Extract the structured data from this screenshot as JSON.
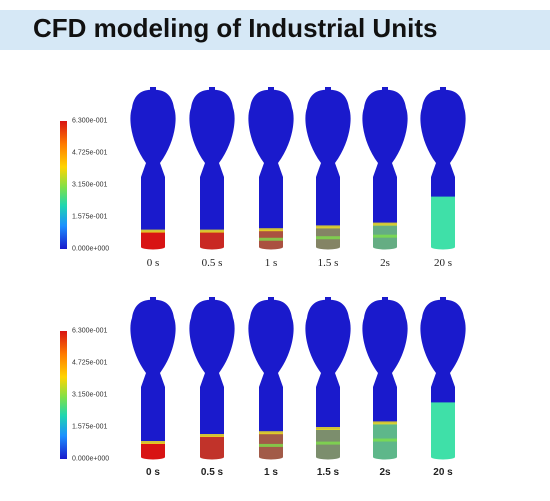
{
  "title": "CFD modeling of Industrial Units",
  "colors": {
    "background_phase": "#1a1acc",
    "high_phase": "#d81414",
    "mixed_phase": "#3fe0a8",
    "title_band": "#d6e8f6"
  },
  "panels": [
    {
      "colorbar_ticks": [
        "6.300e-001",
        "4.725e-001",
        "3.150e-001",
        "1.575e-001",
        "0.000e+000"
      ],
      "frames": [
        {
          "time": "0 s",
          "fill_fraction": 0.22,
          "mix": 0.0
        },
        {
          "time": "0.5 s",
          "fill_fraction": 0.22,
          "mix": 0.1
        },
        {
          "time": "1 s",
          "fill_fraction": 0.24,
          "mix": 0.3
        },
        {
          "time": "1.5 s",
          "fill_fraction": 0.28,
          "mix": 0.55
        },
        {
          "time": "2s",
          "fill_fraction": 0.32,
          "mix": 0.75
        },
        {
          "time": "20 s",
          "fill_fraction": 0.72,
          "mix": 1.0
        }
      ]
    },
    {
      "colorbar_ticks": [
        "6.300e-001",
        "4.725e-001",
        "3.150e-001",
        "1.575e-001",
        "0.000e+000"
      ],
      "frames": [
        {
          "time": "0 s",
          "fill_fraction": 0.2,
          "mix": 0.0
        },
        {
          "time": "0.5 s",
          "fill_fraction": 0.3,
          "mix": 0.15
        },
        {
          "time": "1 s",
          "fill_fraction": 0.34,
          "mix": 0.35
        },
        {
          "time": "1.5 s",
          "fill_fraction": 0.4,
          "mix": 0.6
        },
        {
          "time": "2s",
          "fill_fraction": 0.48,
          "mix": 0.8
        },
        {
          "time": "20 s",
          "fill_fraction": 0.78,
          "mix": 1.0
        }
      ]
    }
  ]
}
